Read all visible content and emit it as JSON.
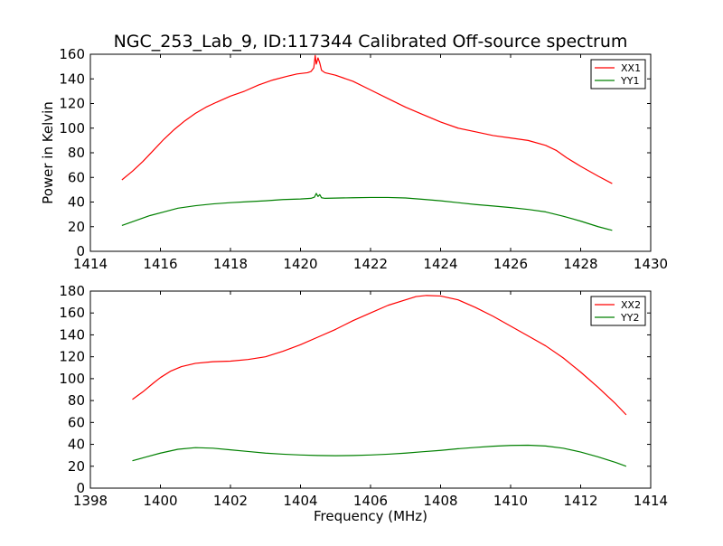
{
  "figure": {
    "title": "NGC_253_Lab_9, ID:117344 Calibrated Off-source spectrum",
    "ylabel": "Power in Kelvin",
    "xlabel": "Frequency (MHz)"
  },
  "chart_data": [
    {
      "type": "line",
      "title": "NGC_253_Lab_9, ID:117344 Calibrated Off-source spectrum",
      "xlabel": "",
      "ylabel": "Power in Kelvin",
      "xlim": [
        1414,
        1430
      ],
      "ylim": [
        0,
        160
      ],
      "xticks": [
        1414,
        1416,
        1418,
        1420,
        1422,
        1424,
        1426,
        1428,
        1430
      ],
      "yticks": [
        0,
        20,
        40,
        60,
        80,
        100,
        120,
        140,
        160
      ],
      "grid": false,
      "legend": "top-right",
      "series": [
        {
          "name": "XX1",
          "color": "#ff0000",
          "x": [
            1414.9,
            1415.2,
            1415.5,
            1415.8,
            1416.1,
            1416.4,
            1416.7,
            1417.0,
            1417.3,
            1417.6,
            1418.0,
            1418.4,
            1418.8,
            1419.2,
            1419.6,
            1419.9,
            1420.2,
            1420.3,
            1420.38,
            1420.42,
            1420.45,
            1420.5,
            1420.55,
            1420.6,
            1420.7,
            1421.0,
            1421.5,
            1422.0,
            1422.5,
            1423.0,
            1423.5,
            1424.0,
            1424.5,
            1425.0,
            1425.5,
            1426.0,
            1426.5,
            1427.0,
            1427.3,
            1427.6,
            1428.0,
            1428.5,
            1428.9
          ],
          "values": [
            58,
            65,
            73,
            82,
            91,
            99,
            106,
            112,
            117,
            121,
            126,
            130,
            135,
            139,
            142,
            144,
            145,
            146,
            149,
            159,
            152,
            157,
            153,
            147,
            145,
            143,
            138,
            131,
            124,
            117,
            111,
            105,
            100,
            97,
            94,
            92,
            90,
            86,
            82,
            76,
            69,
            61,
            55
          ]
        },
        {
          "name": "YY1",
          "color": "#008000",
          "x": [
            1414.9,
            1415.3,
            1415.7,
            1416.1,
            1416.5,
            1417.0,
            1417.5,
            1418.0,
            1418.5,
            1419.0,
            1419.5,
            1420.0,
            1420.3,
            1420.4,
            1420.45,
            1420.5,
            1420.55,
            1420.6,
            1420.7,
            1421.0,
            1421.5,
            1422.0,
            1422.5,
            1423.0,
            1423.5,
            1424.0,
            1424.5,
            1425.0,
            1425.5,
            1426.0,
            1426.5,
            1427.0,
            1427.5,
            1428.0,
            1428.5,
            1428.9
          ],
          "values": [
            21,
            25,
            29,
            32,
            35,
            37,
            38.5,
            39.5,
            40.3,
            41,
            42,
            42.5,
            43,
            44,
            47,
            44.5,
            46,
            43.5,
            43,
            43.2,
            43.5,
            43.7,
            43.7,
            43.3,
            42.2,
            41,
            39.5,
            38,
            36.8,
            35.5,
            34,
            32,
            28.5,
            24.5,
            20,
            17
          ]
        }
      ]
    },
    {
      "type": "line",
      "title": "",
      "xlabel": "Frequency (MHz)",
      "ylabel": "",
      "xlim": [
        1398,
        1414
      ],
      "ylim": [
        0,
        180
      ],
      "xticks": [
        1398,
        1400,
        1402,
        1404,
        1406,
        1408,
        1410,
        1412,
        1414
      ],
      "yticks": [
        0,
        20,
        40,
        60,
        80,
        100,
        120,
        140,
        160,
        180
      ],
      "grid": false,
      "legend": "top-right",
      "series": [
        {
          "name": "XX2",
          "color": "#ff0000",
          "x": [
            1399.2,
            1399.5,
            1399.8,
            1400.0,
            1400.3,
            1400.6,
            1401.0,
            1401.5,
            1402.0,
            1402.5,
            1403.0,
            1403.5,
            1404.0,
            1404.5,
            1405.0,
            1405.5,
            1406.0,
            1406.5,
            1407.0,
            1407.3,
            1407.6,
            1408.0,
            1408.5,
            1409.0,
            1409.5,
            1410.0,
            1410.5,
            1411.0,
            1411.5,
            1412.0,
            1412.5,
            1413.0,
            1413.3
          ],
          "values": [
            81,
            88,
            96,
            101,
            107,
            111,
            114,
            115.5,
            116,
            117.5,
            120,
            125,
            131,
            138,
            145,
            153,
            160,
            167,
            172,
            175,
            176,
            175.5,
            172,
            165,
            157,
            148,
            139,
            130,
            119,
            106,
            92,
            77,
            67
          ]
        },
        {
          "name": "YY2",
          "color": "#008000",
          "x": [
            1399.2,
            1399.6,
            1400.0,
            1400.5,
            1401.0,
            1401.5,
            1402.0,
            1402.5,
            1403.0,
            1403.5,
            1404.0,
            1404.5,
            1405.0,
            1405.5,
            1406.0,
            1406.5,
            1407.0,
            1407.5,
            1408.0,
            1408.5,
            1409.0,
            1409.5,
            1410.0,
            1410.5,
            1411.0,
            1411.5,
            1412.0,
            1412.5,
            1413.0,
            1413.3
          ],
          "values": [
            25,
            28.5,
            32,
            35.5,
            37,
            36.5,
            35,
            33.5,
            32,
            31,
            30.3,
            29.8,
            29.6,
            29.8,
            30.3,
            31,
            32,
            33.3,
            34.5,
            36,
            37.2,
            38.3,
            39,
            39.2,
            38.5,
            36.5,
            33,
            28.5,
            23.5,
            20
          ]
        }
      ]
    }
  ]
}
